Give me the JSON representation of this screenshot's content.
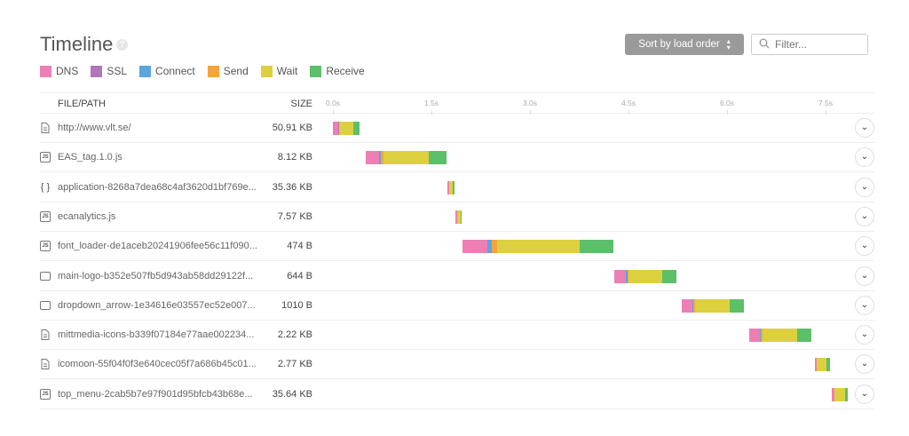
{
  "header": {
    "title": "Timeline",
    "help_icon": "question-icon",
    "sort_label": "Sort by load order",
    "filter_placeholder": "Filter..."
  },
  "legend": [
    {
      "label": "DNS",
      "color": "#ee7fb4"
    },
    {
      "label": "SSL",
      "color": "#b176b8"
    },
    {
      "label": "Connect",
      "color": "#5aa5dc"
    },
    {
      "label": "Send",
      "color": "#f7a33c"
    },
    {
      "label": "Wait",
      "color": "#ddd03e"
    },
    {
      "label": "Receive",
      "color": "#5cbf6a"
    }
  ],
  "columns": {
    "file": "FILE/PATH",
    "size": "SIZE"
  },
  "axis": {
    "ticks": [
      "0.0s",
      "1.5s",
      "3.0s",
      "4.5s",
      "6.0s",
      "7.5s"
    ],
    "tick_values": [
      0,
      1.5,
      3,
      4.5,
      6,
      7.5
    ]
  },
  "rows": [
    {
      "icon": "document",
      "name": "http://www.vlt.se/",
      "size": "50.91 KB",
      "phases": {
        "dns": [
          0,
          0.08
        ],
        "ssl": [
          0.08,
          0.1
        ],
        "wait": [
          0.1,
          0.31
        ],
        "receive": [
          0.31,
          0.41
        ]
      }
    },
    {
      "icon": "js",
      "name": "EAS_tag.1.0.js",
      "size": "8.12 KB",
      "phases": {
        "dns": [
          0.5,
          0.7
        ],
        "connect": [
          0.7,
          0.73
        ],
        "send": [
          0.73,
          0.77
        ],
        "wait": [
          0.77,
          1.46
        ],
        "receive": [
          1.46,
          1.73
        ]
      }
    },
    {
      "icon": "json",
      "name": "application-8268a7dea68c4af3620d1bf769e...",
      "size": "35.36 KB",
      "phases": {
        "dns": [
          1.74,
          1.77
        ],
        "wait": [
          1.77,
          1.83
        ],
        "receive": [
          1.83,
          1.85
        ]
      }
    },
    {
      "icon": "js",
      "name": "ecanalytics.js",
      "size": "7.57 KB",
      "phases": {
        "dns": [
          1.86,
          1.89
        ],
        "wait": [
          1.89,
          1.94
        ],
        "receive": [
          1.94,
          1.96
        ]
      }
    },
    {
      "icon": "js",
      "name": "font_loader-de1aceb20241906fee56c11f090...",
      "size": "474 B",
      "phases": {
        "dns": [
          1.97,
          2.35
        ],
        "connect": [
          2.35,
          2.42
        ],
        "send": [
          2.42,
          2.5
        ],
        "wait": [
          2.5,
          3.76
        ],
        "receive": [
          3.76,
          4.27
        ]
      }
    },
    {
      "icon": "image",
      "name": "main-logo-b352e507fb5d943ab58dd29122f...",
      "size": "644 B",
      "phases": {
        "dns": [
          4.28,
          4.46
        ],
        "connect": [
          4.46,
          4.48
        ],
        "send": [
          4.48,
          4.5
        ],
        "wait": [
          4.5,
          5.01
        ],
        "receive": [
          5.01,
          5.23
        ]
      }
    },
    {
      "icon": "image",
      "name": "dropdown_arrow-1e34616e03557ec52e007...",
      "size": "1010 B",
      "phases": {
        "dns": [
          5.31,
          5.47
        ],
        "connect": [
          5.47,
          5.49
        ],
        "send": [
          5.49,
          5.51
        ],
        "wait": [
          5.51,
          6.04
        ],
        "receive": [
          6.04,
          6.26
        ]
      }
    },
    {
      "icon": "document",
      "name": "mittmedia-icons-b339f07184e77aae002234...",
      "size": "2.22 KB",
      "phases": {
        "dns": [
          6.34,
          6.5
        ],
        "connect": [
          6.5,
          6.52
        ],
        "send": [
          6.52,
          6.54
        ],
        "wait": [
          6.54,
          7.07
        ],
        "receive": [
          7.07,
          7.28
        ]
      }
    },
    {
      "icon": "document",
      "name": "icomoon-55f04f0f3e640cec05f7a686b45c01...",
      "size": "2.77 KB",
      "phases": {
        "dns": [
          7.34,
          7.36
        ],
        "wait": [
          7.36,
          7.51
        ],
        "receive": [
          7.51,
          7.57
        ]
      }
    },
    {
      "icon": "js",
      "name": "top_menu-2cab5b7e97f901d95bfcb43b68e...",
      "size": "35.64 KB",
      "phases": {
        "dns": [
          7.59,
          7.64
        ],
        "wait": [
          7.64,
          7.8
        ],
        "receive": [
          7.8,
          7.84
        ]
      }
    }
  ]
}
